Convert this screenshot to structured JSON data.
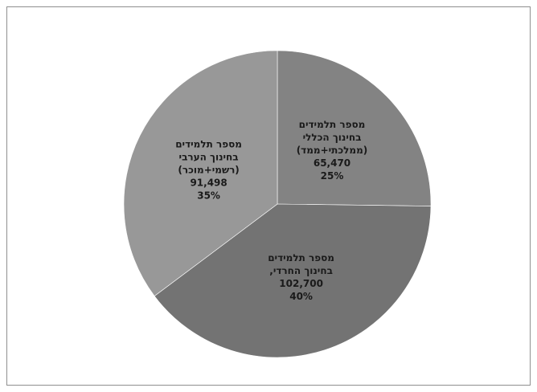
{
  "chart_data": {
    "type": "pie",
    "start_angle_deg": 0,
    "direction": "clockwise",
    "grid": false,
    "legend": "none",
    "slices": [
      {
        "lines": [
          "מספר תלמידים",
          "בחינוך הכללי",
          "(ממלכתי+ממד)"
        ],
        "value": 65470,
        "value_label": "65,470",
        "percent_label": "25%",
        "color": "#838383"
      },
      {
        "lines": [
          "מספר תלמידים",
          "בחינוך החרדי,"
        ],
        "value": 102700,
        "value_label": "102,700",
        "percent_label": "40%",
        "color": "#737373"
      },
      {
        "lines": [
          "מספר תלמידים",
          "בחינוך הערבי",
          "(רשמי+מוכר)"
        ],
        "value": 91498,
        "value_label": "91,498",
        "percent_label": "35%",
        "color": "#989898"
      }
    ]
  }
}
